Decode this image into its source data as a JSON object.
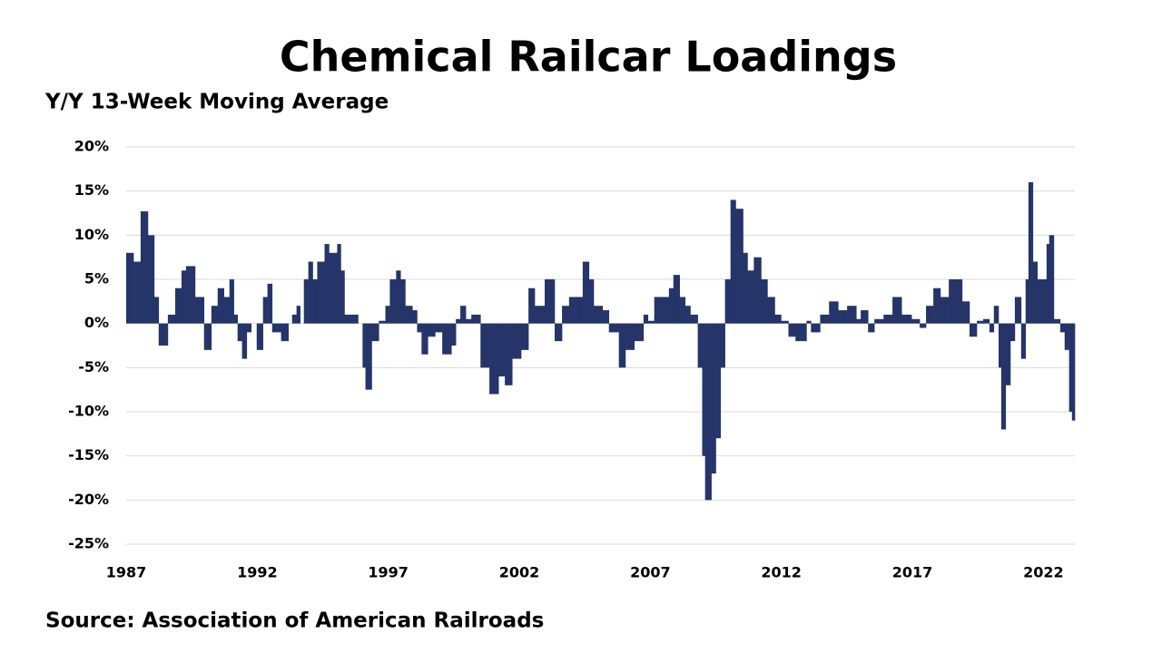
{
  "chart_data": {
    "type": "bar",
    "title": "Chemical Railcar Loadings",
    "subtitle": "Y/Y 13-Week Moving Average",
    "source": "Source: Association of American Railroads",
    "color": "#253569",
    "grid": true,
    "x": [
      1987.0,
      1987.28,
      1987.55,
      1987.83,
      1988.07,
      1988.24,
      1988.59,
      1988.87,
      1989.11,
      1989.28,
      1989.63,
      1989.97,
      1990.25,
      1990.49,
      1990.73,
      1990.94,
      1991.11,
      1991.25,
      1991.42,
      1991.6,
      1991.77,
      1991.98,
      1992.22,
      1992.39,
      1992.57,
      1992.91,
      1993.19,
      1993.33,
      1993.5,
      1993.64,
      1993.78,
      1993.95,
      1994.12,
      1994.29,
      1994.57,
      1994.74,
      1995.05,
      1995.19,
      1995.33,
      1995.68,
      1995.85,
      1996.02,
      1996.13,
      1996.37,
      1996.64,
      1996.78,
      1996.89,
      1997.06,
      1997.3,
      1997.47,
      1997.65,
      1997.92,
      1998.1,
      1998.27,
      1998.51,
      1998.79,
      1999.06,
      1999.41,
      1999.58,
      1999.75,
      1999.96,
      2000.17,
      2000.52,
      2000.86,
      2001.21,
      2001.45,
      2001.73,
      2002.07,
      2002.35,
      2002.59,
      2002.97,
      2003.35,
      2003.63,
      2003.9,
      2004.15,
      2004.42,
      2004.66,
      2004.84,
      2005.18,
      2005.42,
      2005.8,
      2006.05,
      2006.39,
      2006.74,
      2006.91,
      2007.15,
      2007.43,
      2007.71,
      2007.88,
      2008.12,
      2008.33,
      2008.53,
      2008.81,
      2008.98,
      2009.09,
      2009.33,
      2009.5,
      2009.68,
      2009.85,
      2010.06,
      2010.26,
      2010.54,
      2010.71,
      2010.95,
      2011.23,
      2011.47,
      2011.75,
      2011.99,
      2012.27,
      2012.54,
      2012.96,
      2013.13,
      2013.48,
      2013.82,
      2014.17,
      2014.51,
      2014.86,
      2015.03,
      2015.31,
      2015.55,
      2015.9,
      2016.24,
      2016.59,
      2016.97,
      2017.28,
      2017.52,
      2017.8,
      2018.07,
      2018.39,
      2018.66,
      2018.9,
      2019.18,
      2019.46,
      2019.7,
      2019.94,
      2020.11,
      2020.29,
      2020.39,
      2020.56,
      2020.74,
      2020.91,
      2021.15,
      2021.32,
      2021.43,
      2021.6,
      2021.77,
      2021.95,
      2022.12,
      2022.22,
      2022.4,
      2022.64,
      2022.81,
      2022.98,
      2023.09
    ],
    "values": [
      8,
      7,
      12.7,
      10,
      3,
      -2.5,
      1,
      4,
      6,
      6.5,
      3,
      -3,
      2,
      4,
      3,
      5,
      1,
      -2,
      -4,
      -1,
      0,
      -3,
      3,
      4.5,
      -1,
      -2,
      0,
      1,
      2,
      0,
      5,
      7,
      5,
      7,
      9,
      8,
      9,
      6,
      1,
      1,
      0,
      -5,
      -7.5,
      -2,
      0.3,
      0.3,
      2,
      5,
      6,
      5,
      2,
      1.5,
      -1,
      -3.5,
      -1.5,
      -1,
      -3.5,
      -2.5,
      0.5,
      2,
      0.5,
      1,
      -5,
      -8,
      -6,
      -7,
      -4,
      -3,
      4,
      2,
      5,
      -2,
      2,
      3,
      3,
      7,
      5,
      2,
      1.5,
      -1,
      -5,
      -3,
      -2,
      1,
      0.3,
      3,
      3,
      4,
      5.5,
      3,
      2,
      1,
      -5,
      -15,
      -20,
      -17,
      -13,
      -5,
      5,
      14,
      13,
      8,
      6,
      7.5,
      5,
      3,
      1,
      0.3,
      -1.5,
      -2,
      0.3,
      -1,
      1,
      2.5,
      1.5,
      2,
      0.5,
      1.5,
      -1,
      0.5,
      1,
      3,
      1,
      0.5,
      -0.5,
      2,
      4,
      3,
      5,
      5,
      2.5,
      -1.5,
      0.3,
      0.5,
      -1,
      2,
      -5,
      -12,
      -7,
      -2,
      3,
      -4,
      5,
      16,
      7,
      5,
      5,
      9,
      10,
      0.5,
      -1,
      -3,
      -10,
      -11
    ],
    "xlim": [
      1987,
      2023.2
    ],
    "xticks": [
      1987,
      1992,
      1997,
      2002,
      2007,
      2012,
      2017,
      2022
    ],
    "ylim": [
      -25,
      20
    ],
    "yticks": [
      {
        "value": 20,
        "label": "20%"
      },
      {
        "value": 15,
        "label": "15%"
      },
      {
        "value": 10,
        "label": "10%"
      },
      {
        "value": 5,
        "label": "5%"
      },
      {
        "value": 0,
        "label": "0%"
      },
      {
        "value": -5,
        "label": "-5%"
      },
      {
        "value": -10,
        "label": "-10%"
      },
      {
        "value": -15,
        "label": "-15%"
      },
      {
        "value": -20,
        "label": "-20%"
      },
      {
        "value": -25,
        "label": "-25%"
      }
    ]
  }
}
